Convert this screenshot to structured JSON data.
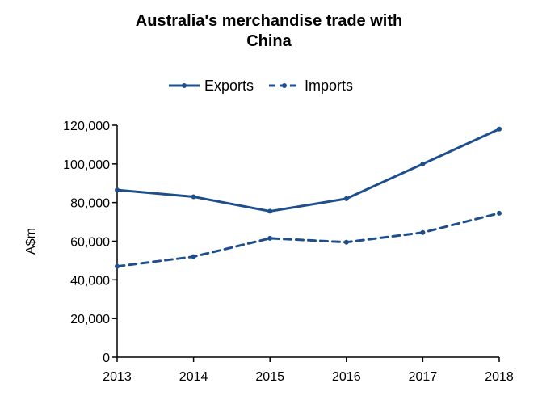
{
  "chart_data": {
    "type": "line",
    "title_lines": [
      "Australia's merchandise trade with",
      "China"
    ],
    "xlabel": "",
    "ylabel": "A$m",
    "x": [
      "2013",
      "2014",
      "2015",
      "2016",
      "2017",
      "2018"
    ],
    "ylim": [
      0,
      120000
    ],
    "yticks": [
      0,
      20000,
      40000,
      60000,
      80000,
      100000,
      120000
    ],
    "ytick_labels": [
      "0",
      "20,000",
      "40,000",
      "60,000",
      "80,000",
      "100,000",
      "120,000"
    ],
    "grid": false,
    "legend_position": "top-center",
    "series": [
      {
        "name": "Exports",
        "style": "solid",
        "color": "#1f4e8c",
        "values": [
          86500,
          83000,
          75500,
          82000,
          100000,
          118000
        ]
      },
      {
        "name": "Imports",
        "style": "dashed",
        "color": "#1f4e8c",
        "values": [
          47000,
          52000,
          61500,
          59500,
          64500,
          74500
        ]
      }
    ]
  }
}
